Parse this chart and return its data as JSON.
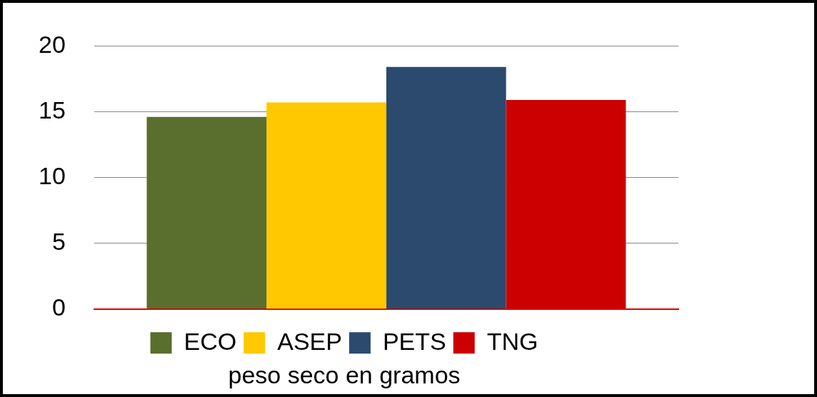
{
  "chart_data": {
    "type": "bar",
    "xlabel": "peso seco en gramos",
    "categories": [
      null
    ],
    "series": [
      {
        "name": "ECO",
        "color": "#5a6e2e",
        "values": [
          14.6
        ]
      },
      {
        "name": "ASEP",
        "color": "#ffc800",
        "values": [
          15.7
        ]
      },
      {
        "name": "PETS",
        "color": "#2b4a6e",
        "values": [
          18.4
        ]
      },
      {
        "name": "TNG",
        "color": "#cc0000",
        "values": [
          15.9
        ]
      }
    ],
    "ylim": [
      0,
      20
    ],
    "yticks": [
      0,
      5,
      10,
      15,
      20
    ],
    "grid": "y",
    "legend": "bottom"
  }
}
